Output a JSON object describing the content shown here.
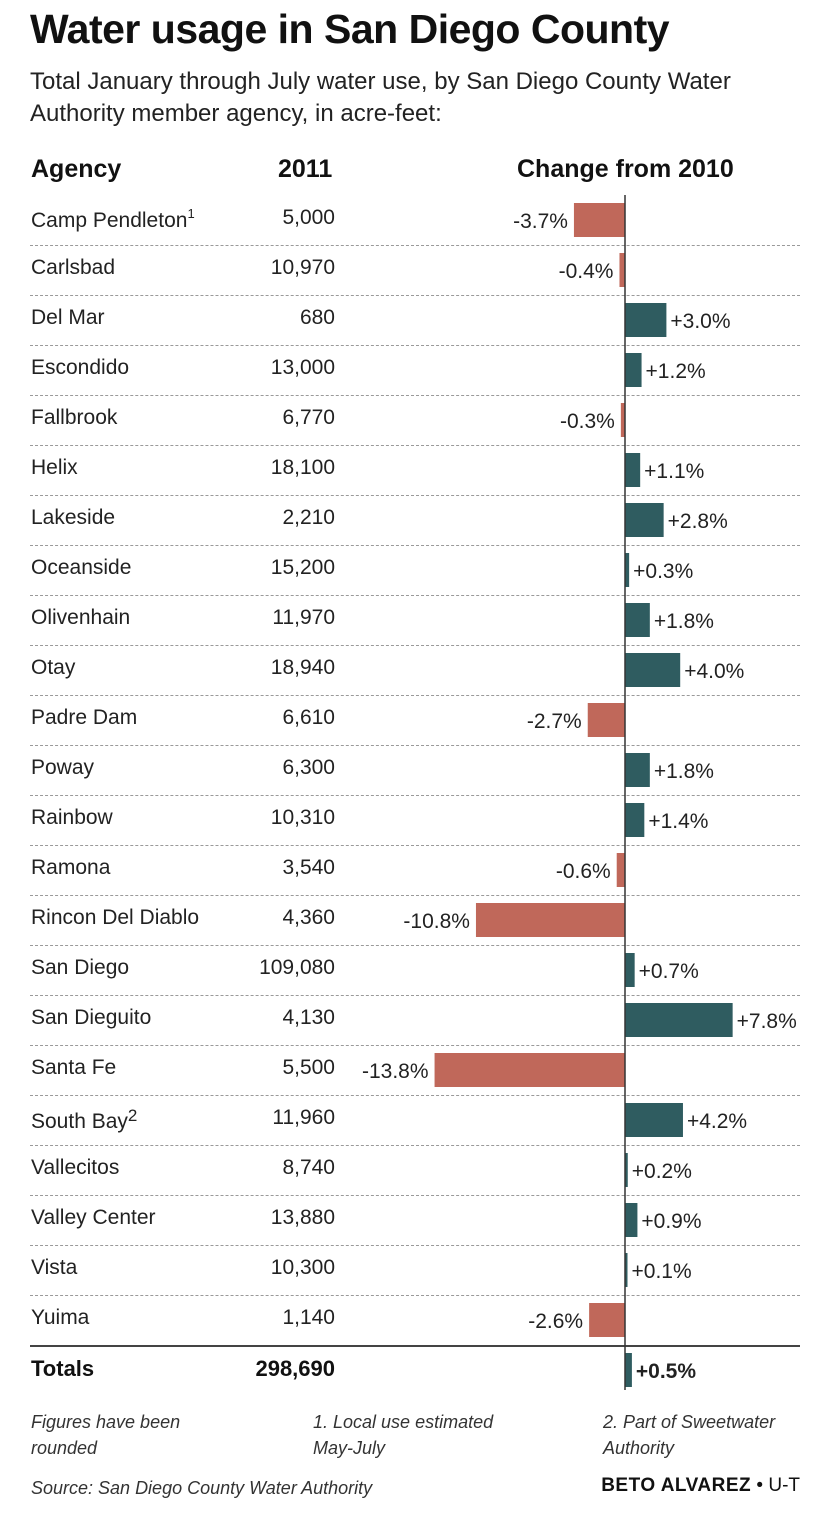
{
  "chart_data": {
    "type": "bar",
    "title": "Water usage in San Diego County",
    "subtitle": "Total January through July water use, by San Diego County Water Authority member agency, in acre-feet:",
    "columns": {
      "agency": "Agency",
      "year": "2011",
      "change": "Change from 2010"
    },
    "colors": {
      "negative": "#c0685a",
      "positive": "#2f5c60",
      "axis": "#333333"
    },
    "rows": [
      {
        "agency": "Camp Pendleton",
        "sup": "1",
        "value": "5,000",
        "change": -3.7,
        "change_label": "-3.7%"
      },
      {
        "agency": "Carlsbad",
        "value": "10,970",
        "change": -0.4,
        "change_label": "-0.4%"
      },
      {
        "agency": "Del Mar",
        "value": "680",
        "change": 3.0,
        "change_label": "+3.0%"
      },
      {
        "agency": "Escondido",
        "value": "13,000",
        "change": 1.2,
        "change_label": "+1.2%"
      },
      {
        "agency": "Fallbrook",
        "value": "6,770",
        "change": -0.3,
        "change_label": "-0.3%"
      },
      {
        "agency": "Helix",
        "value": "18,100",
        "change": 1.1,
        "change_label": "+1.1%"
      },
      {
        "agency": "Lakeside",
        "value": "2,210",
        "change": 2.8,
        "change_label": "+2.8%"
      },
      {
        "agency": "Oceanside",
        "value": "15,200",
        "change": 0.3,
        "change_label": "+0.3%"
      },
      {
        "agency": "Olivenhain",
        "value": "11,970",
        "change": 1.8,
        "change_label": "+1.8%"
      },
      {
        "agency": "Otay",
        "value": "18,940",
        "change": 4.0,
        "change_label": "+4.0%"
      },
      {
        "agency": "Padre Dam",
        "value": "6,610",
        "change": -2.7,
        "change_label": "-2.7%"
      },
      {
        "agency": "Poway",
        "value": "6,300",
        "change": 1.8,
        "change_label": "+1.8%"
      },
      {
        "agency": "Rainbow",
        "value": "10,310",
        "change": 1.4,
        "change_label": "+1.4%"
      },
      {
        "agency": "Ramona",
        "value": "3,540",
        "change": -0.6,
        "change_label": "-0.6%"
      },
      {
        "agency": "Rincon Del Diablo",
        "value": "4,360",
        "change": -10.8,
        "change_label": "-10.8%"
      },
      {
        "agency": "San Diego",
        "value": "109,080",
        "change": 0.7,
        "change_label": "+0.7%"
      },
      {
        "agency": "San Dieguito",
        "value": "4,130",
        "change": 7.8,
        "change_label": "+7.8%"
      },
      {
        "agency": "Santa Fe",
        "value": "5,500",
        "change": -13.8,
        "change_label": "-13.8%"
      },
      {
        "agency": "South Bay",
        "sup": "2",
        "value": "11,960",
        "change": 4.2,
        "change_label": "+4.2%"
      },
      {
        "agency": "Vallecitos",
        "value": "8,740",
        "change": 0.2,
        "change_label": "+0.2%"
      },
      {
        "agency": "Valley Center",
        "value": "13,880",
        "change": 0.9,
        "change_label": "+0.9%"
      },
      {
        "agency": "Vista",
        "value": "10,300",
        "change": 0.1,
        "change_label": "+0.1%"
      },
      {
        "agency": "Yuima",
        "value": "1,140",
        "change": -2.6,
        "change_label": "-2.6%"
      }
    ],
    "totals": {
      "label": "Totals",
      "value": "298,690",
      "change": 0.5,
      "change_label": "+0.5%"
    }
  },
  "notes": {
    "rounded": "Figures have been rounded",
    "note1": "1. Local use estimated May-July",
    "note2": "2. Part of Sweetwater Authority",
    "source": "Source: San Diego County Water Authority"
  },
  "credit": {
    "name": "BETO ALVAREZ",
    "separator": "•",
    "org": "U-T"
  }
}
